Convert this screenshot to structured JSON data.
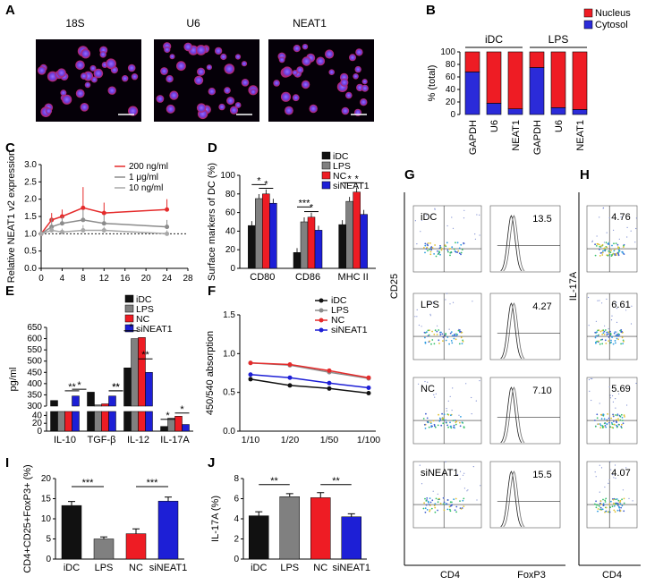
{
  "panel_letters": [
    "A",
    "B",
    "C",
    "D",
    "E",
    "F",
    "G",
    "H",
    "I",
    "J"
  ],
  "colors": {
    "idc": "#111111",
    "lps": "#808080",
    "nc": "#ee1c24",
    "sineat1": "#1d1fd6",
    "nucleus": "#ee1c24",
    "cytosol": "#2b2bd9"
  },
  "panel_a": {
    "labels": [
      "18S",
      "U6",
      "NEAT1"
    ]
  },
  "chart_data": [
    {
      "panel": "B",
      "type": "bar",
      "stacked": true,
      "ylabel": "% (total)",
      "ylim": [
        0,
        100
      ],
      "yticks": [
        0,
        20,
        40,
        60,
        80,
        100
      ],
      "groups": [
        "iDC",
        "LPS"
      ],
      "categories": [
        "GAPDH",
        "U6",
        "NEAT1",
        "GAPDH",
        "U6",
        "NEAT1"
      ],
      "series": [
        {
          "name": "Cytosol",
          "values": [
            68,
            18,
            9,
            75,
            11,
            8
          ]
        },
        {
          "name": "Nucleus",
          "values": [
            32,
            82,
            91,
            25,
            89,
            92
          ]
        }
      ],
      "legend": "top-right"
    },
    {
      "panel": "C",
      "type": "line",
      "ylabel": "Relative NEAT1 v2 expression",
      "xlim": [
        0,
        28
      ],
      "xticks": [
        0,
        4,
        8,
        12,
        16,
        20,
        24,
        28
      ],
      "ylim": [
        0.0,
        3.0
      ],
      "yticks": [
        "0.0",
        "0.5",
        "1.0",
        "1.5",
        "2.0",
        "2.5",
        "3.0"
      ],
      "x": [
        0,
        2,
        4,
        8,
        12,
        24
      ],
      "series": [
        {
          "name": "200 ng/ml",
          "values": [
            1.0,
            1.4,
            1.5,
            1.75,
            1.6,
            1.7
          ]
        },
        {
          "name": "1 μg/ml",
          "values": [
            1.0,
            1.2,
            1.3,
            1.4,
            1.3,
            1.2
          ]
        },
        {
          "name": "10 ng/ml",
          "values": [
            1.0,
            1.1,
            1.05,
            1.1,
            1.1,
            1.0
          ]
        }
      ],
      "legend": "top-right"
    },
    {
      "panel": "D",
      "type": "bar",
      "ylabel": "Surface markers of DC (%)",
      "ylim": [
        0,
        100
      ],
      "yticks": [
        0,
        20,
        40,
        60,
        80,
        100
      ],
      "categories": [
        "CD80",
        "CD86",
        "MHC II"
      ],
      "series": [
        {
          "name": "iDC",
          "values": [
            46,
            17,
            47
          ]
        },
        {
          "name": "LPS",
          "values": [
            75,
            50,
            72
          ]
        },
        {
          "name": "NC",
          "values": [
            80,
            55,
            82
          ]
        },
        {
          "name": "siNEAT1",
          "values": [
            70,
            41,
            58
          ]
        }
      ],
      "annotations": [
        "*",
        "*",
        "***",
        "*",
        "*",
        "*"
      ],
      "legend": "top-right"
    },
    {
      "panel": "E",
      "type": "bar",
      "broken_axis": true,
      "ylabel": "pg/ml",
      "yticks_upper": [
        300,
        350,
        400,
        450,
        500,
        550,
        600,
        650
      ],
      "yticks_lower": [
        0,
        20,
        40
      ],
      "categories": [
        "IL-10",
        "TGF-β",
        "IL-12",
        "IL-17A"
      ],
      "series": [
        {
          "name": "iDC",
          "values": [
            325,
            362,
            470,
            12
          ]
        },
        {
          "name": "LPS",
          "values": [
            285,
            305,
            600,
            33
          ]
        },
        {
          "name": "NC",
          "values": [
            300,
            310,
            605,
            38
          ]
        },
        {
          "name": "siNEAT1",
          "values": [
            345,
            345,
            450,
            17
          ]
        }
      ],
      "annotations": [
        "*",
        "**",
        "**",
        "**",
        "*",
        "**",
        "*",
        "*"
      ],
      "legend": "top-right"
    },
    {
      "panel": "F",
      "type": "line",
      "ylabel": "450/540 absorption",
      "ylim": [
        0.0,
        1.5
      ],
      "yticks": [
        "0.0",
        "0.5",
        "1.0",
        "1.5"
      ],
      "categories": [
        "1/10",
        "1/20",
        "1/50",
        "1/100"
      ],
      "series": [
        {
          "name": "iDC",
          "values": [
            0.67,
            0.59,
            0.55,
            0.49
          ]
        },
        {
          "name": "LPS",
          "values": [
            0.88,
            0.85,
            0.76,
            0.68
          ]
        },
        {
          "name": "NC",
          "values": [
            0.88,
            0.86,
            0.78,
            0.69
          ]
        },
        {
          "name": "siNEAT1",
          "values": [
            0.73,
            0.69,
            0.62,
            0.56
          ]
        }
      ],
      "legend": "top-right"
    },
    {
      "panel": "H",
      "type": "bar",
      "ylabel": "CD4+CD25+FoxP3+ (%)",
      "ylim": [
        0,
        20
      ],
      "yticks": [
        0,
        5,
        10,
        15,
        20
      ],
      "categories": [
        "iDC",
        "LPS",
        "NC",
        "siNEAT1"
      ],
      "values": [
        13.3,
        5.0,
        6.3,
        14.4
      ],
      "errors": [
        1.0,
        0.5,
        1.2,
        1.0
      ],
      "annotations": [
        "***",
        "***"
      ]
    },
    {
      "panel": "J",
      "type": "bar",
      "ylabel": "IL-17A (%)",
      "ylim": [
        0,
        8
      ],
      "yticks": [
        0,
        2,
        4,
        6,
        8
      ],
      "categories": [
        "iDC",
        "LPS",
        "NC",
        "siNEAT1"
      ],
      "values": [
        4.3,
        6.2,
        6.1,
        4.2
      ],
      "errors": [
        0.4,
        0.3,
        0.5,
        0.3
      ],
      "annotations": [
        "**",
        "**"
      ]
    }
  ],
  "panel_g": {
    "y_label": "CD25",
    "x_label_left": "CD4",
    "x_label_right": "FoxP3",
    "rows": [
      {
        "label": "iDC",
        "value": "13.5"
      },
      {
        "label": "LPS",
        "value": "4.27"
      },
      {
        "label": "NC",
        "value": "7.10"
      },
      {
        "label": "siNEAT1",
        "value": "15.5"
      }
    ]
  },
  "panel_i": {
    "y_label": "IL-17A",
    "x_label": "CD4",
    "values": [
      "4.76",
      "6.61",
      "5.69",
      "4.07"
    ]
  }
}
